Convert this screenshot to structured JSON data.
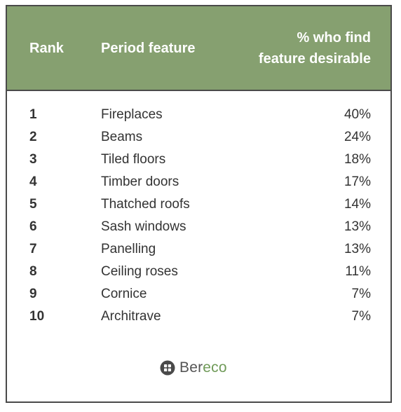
{
  "chart_data": {
    "type": "table",
    "columns": [
      "Rank",
      "Period feature",
      "% who find feature desirable"
    ],
    "header": {
      "rank": "Rank",
      "feature": "Period feature",
      "pct_line1": "% who find",
      "pct_line2": "feature desirable"
    },
    "rows": [
      {
        "rank": "1",
        "feature": "Fireplaces",
        "pct": "40%"
      },
      {
        "rank": "2",
        "feature": "Beams",
        "pct": "24%"
      },
      {
        "rank": "3",
        "feature": "Tiled floors",
        "pct": "18%"
      },
      {
        "rank": "4",
        "feature": "Timber doors",
        "pct": "17%"
      },
      {
        "rank": "5",
        "feature": "Thatched roofs",
        "pct": "14%"
      },
      {
        "rank": "6",
        "feature": "Sash windows",
        "pct": "13%"
      },
      {
        "rank": "7",
        "feature": "Panelling",
        "pct": "13%"
      },
      {
        "rank": "8",
        "feature": "Ceiling roses",
        "pct": "11%"
      },
      {
        "rank": "9",
        "feature": "Cornice",
        "pct": "7%"
      },
      {
        "rank": "10",
        "feature": "Architrave",
        "pct": "7%"
      }
    ]
  },
  "logo": {
    "part1": "Ber",
    "part2": "eco",
    "icon": "window-icon"
  },
  "colors": {
    "header_bg": "#86a070",
    "border": "#4a4a4a",
    "text": "#333333",
    "logo_accent": "#6f9a58"
  }
}
